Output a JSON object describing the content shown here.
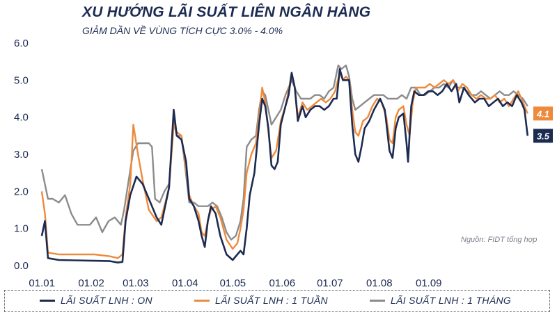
{
  "header": {
    "title": "XU HƯỚNG LÃI SUẤT LIÊN NGÂN HÀNG",
    "subtitle": "GIẢM DẦN VỀ VÙNG TÍCH CỰC 3.0% - 4.0%"
  },
  "source_note": "Nguồn: FIDT tổng hợp",
  "colors": {
    "on": "#1c2b52",
    "week": "#ee8a3c",
    "month": "#8c8c8c",
    "text": "#1c2b52"
  },
  "chart_data": {
    "type": "line",
    "title": "XU HƯỚNG LÃI SUẤT LIÊN NGÂN HÀNG",
    "subtitle": "GIẢM DẦN VỀ VÙNG TÍCH CỰC 3.0% - 4.0%",
    "x_ticks": [
      "01.01",
      "01.02",
      "01.03",
      "01.04",
      "01.05",
      "01.06",
      "01.07",
      "01.08",
      "01.09"
    ],
    "y_ticks": [
      "0.0",
      "1.0",
      "2.0",
      "3.0",
      "4.0",
      "5.0",
      "6.0"
    ],
    "ylim": [
      0,
      6
    ],
    "grid": false,
    "legend_position": "bottom",
    "series": [
      {
        "name": "LÃI SUẤT LNH : ON",
        "end_label": "3.5",
        "points": [
          [
            1,
            0.8
          ],
          [
            3,
            1.2
          ],
          [
            5,
            0.2
          ],
          [
            12,
            0.15
          ],
          [
            22,
            0.14
          ],
          [
            35,
            0.13
          ],
          [
            45,
            0.12
          ],
          [
            50,
            0.08
          ],
          [
            53,
            0.1
          ],
          [
            55,
            1.2
          ],
          [
            58,
            1.9
          ],
          [
            62,
            2.4
          ],
          [
            66,
            2.2
          ],
          [
            70,
            1.8
          ],
          [
            75,
            1.3
          ],
          [
            78,
            1.1
          ],
          [
            80,
            1.5
          ],
          [
            83,
            2.1
          ],
          [
            86,
            4.2
          ],
          [
            88,
            3.5
          ],
          [
            91,
            3.4
          ],
          [
            94,
            2.8
          ],
          [
            96,
            1.8
          ],
          [
            99,
            1.6
          ],
          [
            102,
            1.2
          ],
          [
            104,
            0.8
          ],
          [
            106,
            0.5
          ],
          [
            108,
            1.2
          ],
          [
            110,
            1.6
          ],
          [
            113,
            1.4
          ],
          [
            116,
            0.8
          ],
          [
            120,
            0.3
          ],
          [
            124,
            0.15
          ],
          [
            127,
            0.3
          ],
          [
            129,
            0.4
          ],
          [
            131,
            0.3
          ],
          [
            133,
            1.0
          ],
          [
            135,
            1.9
          ],
          [
            138,
            2.5
          ],
          [
            141,
            3.8
          ],
          [
            143,
            4.5
          ],
          [
            145,
            4.3
          ],
          [
            147,
            3.7
          ],
          [
            149,
            2.7
          ],
          [
            151,
            2.6
          ],
          [
            153,
            2.8
          ],
          [
            155,
            3.8
          ],
          [
            158,
            4.3
          ],
          [
            160,
            4.6
          ],
          [
            162,
            5.2
          ],
          [
            164,
            4.8
          ],
          [
            166,
            3.9
          ],
          [
            169,
            4.3
          ],
          [
            171,
            4.0
          ],
          [
            174,
            4.2
          ],
          [
            177,
            4.3
          ],
          [
            180,
            4.3
          ],
          [
            183,
            4.2
          ],
          [
            186,
            4.3
          ],
          [
            189,
            4.5
          ],
          [
            191,
            4.5
          ],
          [
            193,
            5.3
          ],
          [
            195,
            5.0
          ],
          [
            197,
            5.0
          ],
          [
            199,
            5.0
          ],
          [
            201,
            3.8
          ],
          [
            203,
            3.0
          ],
          [
            205,
            2.8
          ],
          [
            207,
            3.2
          ],
          [
            209,
            3.7
          ],
          [
            212,
            3.9
          ],
          [
            215,
            4.2
          ],
          [
            219,
            4.5
          ],
          [
            222,
            4.2
          ],
          [
            225,
            3.1
          ],
          [
            227,
            2.9
          ],
          [
            229,
            3.7
          ],
          [
            231,
            4.0
          ],
          [
            234,
            4.1
          ],
          [
            236,
            3.3
          ],
          [
            237,
            2.8
          ],
          [
            239,
            4.3
          ],
          [
            241,
            4.7
          ],
          [
            244,
            4.6
          ],
          [
            247,
            4.6
          ],
          [
            250,
            4.7
          ],
          [
            253,
            4.7
          ],
          [
            256,
            4.6
          ],
          [
            259,
            4.7
          ],
          [
            262,
            4.9
          ],
          [
            265,
            4.7
          ],
          [
            268,
            4.9
          ],
          [
            270,
            4.4
          ],
          [
            273,
            4.8
          ],
          [
            276,
            4.6
          ],
          [
            280,
            4.4
          ],
          [
            283,
            4.5
          ],
          [
            286,
            4.5
          ],
          [
            289,
            4.3
          ],
          [
            292,
            4.4
          ],
          [
            295,
            4.5
          ],
          [
            298,
            4.3
          ],
          [
            301,
            4.4
          ],
          [
            304,
            4.3
          ],
          [
            307,
            4.6
          ],
          [
            310,
            4.4
          ],
          [
            312,
            4.2
          ],
          [
            314,
            3.5
          ]
        ]
      },
      {
        "name": "LÃI SUẤT LNH : 1 TUẦN",
        "end_label": "4.1",
        "points": [
          [
            1,
            2.0
          ],
          [
            3,
            1.4
          ],
          [
            5,
            0.35
          ],
          [
            12,
            0.3
          ],
          [
            22,
            0.3
          ],
          [
            35,
            0.3
          ],
          [
            45,
            0.25
          ],
          [
            50,
            0.2
          ],
          [
            53,
            0.3
          ],
          [
            55,
            1.3
          ],
          [
            58,
            2.2
          ],
          [
            60,
            3.8
          ],
          [
            63,
            3.0
          ],
          [
            66,
            2.3
          ],
          [
            70,
            1.5
          ],
          [
            75,
            1.2
          ],
          [
            78,
            1.3
          ],
          [
            80,
            1.6
          ],
          [
            83,
            2.1
          ],
          [
            86,
            3.8
          ],
          [
            88,
            3.6
          ],
          [
            91,
            3.5
          ],
          [
            94,
            2.6
          ],
          [
            96,
            1.9
          ],
          [
            99,
            1.6
          ],
          [
            102,
            1.4
          ],
          [
            104,
            0.9
          ],
          [
            106,
            0.8
          ],
          [
            108,
            1.2
          ],
          [
            110,
            1.5
          ],
          [
            113,
            1.6
          ],
          [
            116,
            1.3
          ],
          [
            120,
            0.7
          ],
          [
            124,
            0.45
          ],
          [
            127,
            0.6
          ],
          [
            129,
            1.0
          ],
          [
            131,
            1.5
          ],
          [
            133,
            2.5
          ],
          [
            136,
            3.0
          ],
          [
            139,
            3.3
          ],
          [
            141,
            4.0
          ],
          [
            143,
            4.8
          ],
          [
            145,
            4.4
          ],
          [
            147,
            3.6
          ],
          [
            149,
            2.9
          ],
          [
            152,
            3.1
          ],
          [
            155,
            3.9
          ],
          [
            158,
            4.3
          ],
          [
            160,
            4.7
          ],
          [
            162,
            5.2
          ],
          [
            164,
            4.8
          ],
          [
            166,
            4.0
          ],
          [
            169,
            4.4
          ],
          [
            172,
            4.2
          ],
          [
            175,
            4.3
          ],
          [
            178,
            4.4
          ],
          [
            181,
            4.5
          ],
          [
            184,
            4.4
          ],
          [
            187,
            4.5
          ],
          [
            190,
            4.7
          ],
          [
            193,
            5.2
          ],
          [
            195,
            5.0
          ],
          [
            197,
            5.1
          ],
          [
            199,
            5.0
          ],
          [
            201,
            4.2
          ],
          [
            203,
            3.6
          ],
          [
            205,
            3.5
          ],
          [
            208,
            3.9
          ],
          [
            211,
            4.0
          ],
          [
            214,
            4.3
          ],
          [
            217,
            4.5
          ],
          [
            220,
            4.4
          ],
          [
            223,
            4.0
          ],
          [
            225,
            3.4
          ],
          [
            227,
            3.3
          ],
          [
            229,
            4.0
          ],
          [
            231,
            4.2
          ],
          [
            234,
            4.3
          ],
          [
            236,
            3.8
          ],
          [
            238,
            3.5
          ],
          [
            240,
            4.4
          ],
          [
            242,
            4.8
          ],
          [
            245,
            4.8
          ],
          [
            248,
            4.8
          ],
          [
            251,
            4.9
          ],
          [
            254,
            4.8
          ],
          [
            257,
            4.9
          ],
          [
            260,
            5.0
          ],
          [
            263,
            4.9
          ],
          [
            266,
            5.0
          ],
          [
            269,
            4.7
          ],
          [
            272,
            4.9
          ],
          [
            275,
            4.8
          ],
          [
            278,
            4.6
          ],
          [
            281,
            4.5
          ],
          [
            284,
            4.6
          ],
          [
            287,
            4.5
          ],
          [
            290,
            4.5
          ],
          [
            293,
            4.6
          ],
          [
            296,
            4.4
          ],
          [
            299,
            4.5
          ],
          [
            302,
            4.3
          ],
          [
            305,
            4.5
          ],
          [
            308,
            4.7
          ],
          [
            311,
            4.4
          ],
          [
            314,
            4.1
          ]
        ]
      },
      {
        "name": "LÃI SUẤT LNH : 1 THÁNG",
        "end_label": "",
        "points": [
          [
            1,
            2.6
          ],
          [
            3,
            2.2
          ],
          [
            5,
            1.8
          ],
          [
            8,
            1.8
          ],
          [
            12,
            1.7
          ],
          [
            16,
            1.9
          ],
          [
            20,
            1.4
          ],
          [
            24,
            1.1
          ],
          [
            28,
            1.1
          ],
          [
            32,
            1.1
          ],
          [
            36,
            1.3
          ],
          [
            40,
            0.9
          ],
          [
            44,
            1.2
          ],
          [
            48,
            1.3
          ],
          [
            52,
            1.1
          ],
          [
            54,
            1.5
          ],
          [
            57,
            2.3
          ],
          [
            60,
            3.1
          ],
          [
            63,
            3.3
          ],
          [
            66,
            3.3
          ],
          [
            70,
            3.3
          ],
          [
            72,
            3.2
          ],
          [
            74,
            1.8
          ],
          [
            77,
            1.7
          ],
          [
            80,
            2.0
          ],
          [
            83,
            2.2
          ],
          [
            86,
            3.9
          ],
          [
            88,
            3.5
          ],
          [
            91,
            3.5
          ],
          [
            93,
            2.8
          ],
          [
            96,
            1.7
          ],
          [
            99,
            1.7
          ],
          [
            102,
            1.6
          ],
          [
            105,
            1.6
          ],
          [
            108,
            1.6
          ],
          [
            111,
            1.7
          ],
          [
            114,
            1.6
          ],
          [
            117,
            1.3
          ],
          [
            120,
            0.9
          ],
          [
            123,
            0.7
          ],
          [
            126,
            0.8
          ],
          [
            129,
            1.2
          ],
          [
            131,
            1.8
          ],
          [
            133,
            3.2
          ],
          [
            136,
            3.4
          ],
          [
            139,
            3.5
          ],
          [
            141,
            4.2
          ],
          [
            143,
            4.7
          ],
          [
            145,
            4.6
          ],
          [
            147,
            4.2
          ],
          [
            149,
            3.8
          ],
          [
            152,
            4.0
          ],
          [
            155,
            4.2
          ],
          [
            158,
            4.6
          ],
          [
            160,
            4.8
          ],
          [
            162,
            5.0
          ],
          [
            165,
            4.7
          ],
          [
            168,
            4.5
          ],
          [
            171,
            4.5
          ],
          [
            174,
            4.5
          ],
          [
            177,
            4.6
          ],
          [
            180,
            4.6
          ],
          [
            183,
            4.5
          ],
          [
            186,
            4.7
          ],
          [
            189,
            4.8
          ],
          [
            192,
            5.4
          ],
          [
            194,
            5.3
          ],
          [
            197,
            5.4
          ],
          [
            199,
            5.1
          ],
          [
            201,
            4.5
          ],
          [
            203,
            4.2
          ],
          [
            206,
            4.3
          ],
          [
            209,
            4.4
          ],
          [
            212,
            4.5
          ],
          [
            215,
            4.6
          ],
          [
            218,
            4.6
          ],
          [
            221,
            4.6
          ],
          [
            224,
            4.5
          ],
          [
            227,
            4.5
          ],
          [
            230,
            4.5
          ],
          [
            233,
            4.6
          ],
          [
            236,
            4.5
          ],
          [
            239,
            4.8
          ],
          [
            242,
            4.8
          ],
          [
            245,
            4.6
          ],
          [
            248,
            4.6
          ],
          [
            251,
            4.7
          ],
          [
            254,
            4.8
          ],
          [
            257,
            4.8
          ],
          [
            260,
            4.9
          ],
          [
            263,
            4.8
          ],
          [
            266,
            5.0
          ],
          [
            269,
            4.8
          ],
          [
            272,
            4.8
          ],
          [
            275,
            4.7
          ],
          [
            278,
            4.6
          ],
          [
            281,
            4.6
          ],
          [
            284,
            4.7
          ],
          [
            287,
            4.6
          ],
          [
            290,
            4.5
          ],
          [
            293,
            4.6
          ],
          [
            296,
            4.7
          ],
          [
            299,
            4.6
          ],
          [
            302,
            4.6
          ],
          [
            305,
            4.7
          ],
          [
            308,
            4.6
          ],
          [
            311,
            4.5
          ],
          [
            314,
            4.3
          ]
        ]
      }
    ]
  }
}
